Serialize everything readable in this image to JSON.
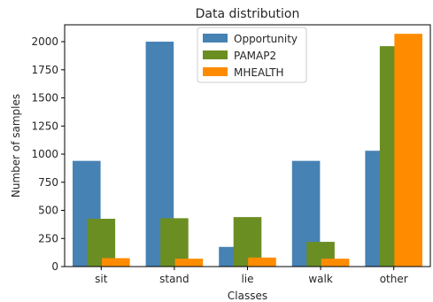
{
  "chart_data": {
    "type": "bar",
    "title": "Data distribution",
    "xlabel": "Classes",
    "ylabel": "Number of samples",
    "categories": [
      "sit",
      "stand",
      "lie",
      "walk",
      "other"
    ],
    "series": [
      {
        "name": "Opportunity",
        "color": "#4682b4",
        "values": [
          940,
          2000,
          175,
          940,
          1030
        ]
      },
      {
        "name": "PAMAP2",
        "color": "#6b8e23",
        "values": [
          425,
          430,
          440,
          220,
          1960
        ]
      },
      {
        "name": "MHEALTH",
        "color": "#ff8c00",
        "values": [
          75,
          70,
          80,
          70,
          2070
        ]
      }
    ],
    "ylim": [
      0,
      2150
    ],
    "yticks": [
      0,
      250,
      500,
      750,
      1000,
      1250,
      1500,
      1750,
      2000
    ],
    "grid": false,
    "legend_position": "top-center"
  }
}
